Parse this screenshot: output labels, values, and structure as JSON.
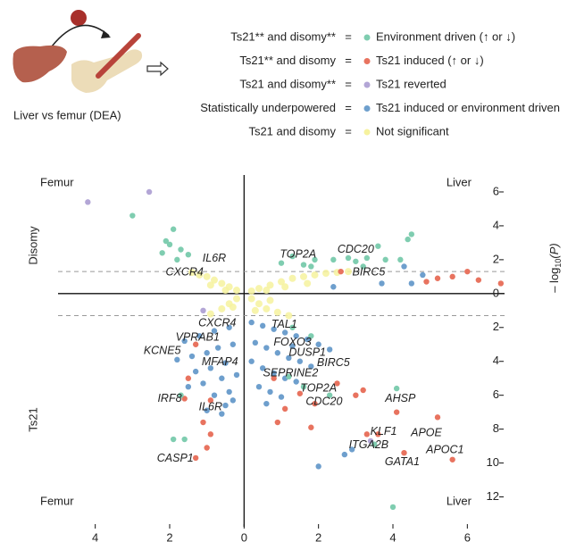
{
  "header": {
    "caption": "Liver vs femur (DEA)"
  },
  "legend_separator": "=",
  "chart_data": {
    "type": "scatter",
    "corner_labels": {
      "top_left": "Femur",
      "top_right": "Liver",
      "bottom_left": "Femur",
      "bottom_right": "Liver"
    },
    "panel_labels": {
      "upper": "Disomy",
      "lower": "Ts21"
    },
    "y_label": {
      "prefix": "– log",
      "subscript": "10",
      "suffix": "(P)"
    },
    "xlim": [
      -5,
      7
    ],
    "xticks": [
      {
        "value": -4,
        "label": "4"
      },
      {
        "value": -2,
        "label": "2"
      },
      0,
      2,
      4,
      6
    ],
    "ylim": [
      -13.5,
      7
    ],
    "yticks": [
      6,
      4,
      2,
      0,
      {
        "value": -2,
        "label": "2"
      },
      {
        "value": -4,
        "label": "4"
      },
      {
        "value": -6,
        "label": "6"
      },
      {
        "value": -8,
        "label": "8"
      },
      {
        "value": -10,
        "label": "10"
      },
      {
        "value": -12,
        "label": "12"
      }
    ],
    "thresholds": [
      1.3,
      -1.3
    ],
    "series": [
      {
        "name": "Not significant",
        "condition": "Ts21 and disomy",
        "color": "#f6f29e",
        "x": [
          -0.2,
          -0.4,
          -0.6,
          -0.8,
          -1.0,
          -1.2,
          -1.4,
          -0.5,
          -0.9,
          0.2,
          0.4,
          0.7,
          1.0,
          1.3,
          1.6,
          1.9,
          2.2,
          2.5,
          2.8,
          0.6,
          1.1,
          1.7,
          -0.2,
          -0.4,
          -0.6,
          -0.9,
          0.2,
          0.4,
          0.6,
          0.9,
          1.2,
          0.3,
          0.7,
          -0.3
        ],
        "values": [
          0.2,
          0.4,
          0.6,
          0.8,
          1.0,
          1.1,
          1.25,
          0.2,
          0.5,
          0.15,
          0.3,
          0.5,
          0.7,
          0.9,
          1.0,
          1.1,
          1.2,
          1.25,
          1.3,
          0.2,
          0.4,
          0.6,
          -0.3,
          -0.6,
          -0.9,
          -1.2,
          -0.3,
          -0.6,
          -0.9,
          -1.1,
          -1.3,
          -1.0,
          -0.4,
          -0.8
        ]
      },
      {
        "name": "Ts21 induced or environment driven",
        "condition": "Statistically underpowered",
        "color": "#6e9fcd",
        "x": [
          3.7,
          4.5,
          4.8,
          4.3,
          2.4,
          -0.4,
          -0.8,
          -1.2,
          -1.6,
          -0.3,
          -0.7,
          -1.0,
          -1.4,
          -1.8,
          -0.5,
          -0.9,
          -1.3,
          -0.2,
          -0.6,
          -1.1,
          -1.5,
          -0.4,
          -0.8,
          -1.0,
          -0.3,
          -0.6,
          0.2,
          0.5,
          0.8,
          1.1,
          1.4,
          1.7,
          2.0,
          2.3,
          0.3,
          0.6,
          0.9,
          1.2,
          1.5,
          1.8,
          0.2,
          0.5,
          0.8,
          1.1,
          1.4,
          0.4,
          0.7,
          1.0,
          2.0,
          2.7,
          2.9,
          -0.5,
          0.6,
          1.3
        ],
        "values": [
          0.6,
          0.6,
          1.1,
          1.6,
          0.4,
          -2.0,
          -2.2,
          -2.5,
          -2.8,
          -3.0,
          -3.2,
          -3.5,
          -3.7,
          -3.9,
          -4.1,
          -4.4,
          -4.6,
          -4.8,
          -5.0,
          -5.3,
          -5.5,
          -5.8,
          -6.0,
          -6.9,
          -6.3,
          -7.1,
          -1.7,
          -1.9,
          -2.1,
          -2.3,
          -2.5,
          -2.7,
          -3.0,
          -3.3,
          -2.9,
          -3.2,
          -3.5,
          -3.8,
          -4.0,
          -4.3,
          -4.0,
          -4.4,
          -4.7,
          -5.0,
          -5.2,
          -5.5,
          -5.8,
          -6.1,
          -10.2,
          -9.5,
          -9.2,
          -6.6,
          -6.5,
          -3.1
        ]
      },
      {
        "name": "Ts21 reverted",
        "condition": "Ts21 and disomy**",
        "color": "#b3a6d6",
        "x": [
          -4.2,
          -2.55,
          -1.1,
          3.4
        ],
        "values": [
          5.4,
          6.0,
          -1.0,
          -8.7
        ]
      },
      {
        "name": "Ts21 induced (↑ or ↓)",
        "condition": "Ts21** and disomy",
        "color": "#e8735f",
        "x": [
          4.9,
          5.2,
          6.0,
          6.3,
          6.9,
          5.6,
          2.6,
          -1.3,
          -1.5,
          -1.6,
          -0.9,
          -1.1,
          -0.9,
          -1.0,
          -1.3,
          1.5,
          1.1,
          0.8,
          1.9,
          2.5,
          3.2,
          3.3,
          3.6,
          4.1,
          4.3,
          5.2,
          5.6,
          3.0,
          0.9,
          1.8
        ],
        "values": [
          0.7,
          0.9,
          1.3,
          0.8,
          0.6,
          1.0,
          1.3,
          -3.0,
          -5.0,
          -6.2,
          -6.3,
          -7.6,
          -8.3,
          -9.1,
          -9.7,
          -5.9,
          -6.8,
          -5.0,
          -6.5,
          -5.3,
          -5.7,
          -8.3,
          -8.3,
          -7.0,
          -9.4,
          -7.3,
          -9.8,
          -6.0,
          -7.6,
          -7.9
        ]
      },
      {
        "name": "Environment driven (↑ or ↓)",
        "condition": "Ts21** and disomy**",
        "color": "#7fcdb0",
        "x": [
          -1.9,
          -2.1,
          -2.0,
          -1.7,
          -1.5,
          -2.2,
          -1.8,
          -3.0,
          1.0,
          1.3,
          1.6,
          1.9,
          1.8,
          2.4,
          2.8,
          3.0,
          3.3,
          3.6,
          3.2,
          4.2,
          4.5,
          4.4,
          3.8,
          -1.7,
          -1.9,
          -1.6,
          3.5,
          2.3,
          1.6,
          1.2,
          4.0,
          1.8,
          1.3,
          4.1
        ],
        "values": [
          3.8,
          3.1,
          2.9,
          2.6,
          2.3,
          2.4,
          2.0,
          4.6,
          1.8,
          2.2,
          1.7,
          2.0,
          1.6,
          2.0,
          2.1,
          1.9,
          2.1,
          2.8,
          1.6,
          2.0,
          3.5,
          3.2,
          2.0,
          -6.0,
          -8.6,
          -8.6,
          -8.9,
          -6.0,
          -5.5,
          -4.9,
          -12.6,
          -2.5,
          -2.0,
          -5.6
        ]
      }
    ],
    "annotations": [
      {
        "text": "IL6R",
        "x": -0.8,
        "y": 2.05
      },
      {
        "text": "CXCR4",
        "x": -1.6,
        "y": 1.25
      },
      {
        "text": "TOP2A",
        "x": 1.45,
        "y": 2.3
      },
      {
        "text": "CDC20",
        "x": 3.0,
        "y": 2.6
      },
      {
        "text": "BIRC5",
        "x": 3.35,
        "y": 1.25
      },
      {
        "text": "CXCR4",
        "x": -0.72,
        "y": -1.75
      },
      {
        "text": "TAL1",
        "x": 1.08,
        "y": -1.85
      },
      {
        "text": "VPRAB1",
        "x": -1.25,
        "y": -2.6
      },
      {
        "text": "FOXO3",
        "x": 1.3,
        "y": -2.9
      },
      {
        "text": "KCNE5",
        "x": -2.2,
        "y": -3.4
      },
      {
        "text": "DUSP1",
        "x": 1.7,
        "y": -3.5
      },
      {
        "text": "MFAP4",
        "x": -0.65,
        "y": -4.05
      },
      {
        "text": "BIRC5",
        "x": 2.4,
        "y": -4.1
      },
      {
        "text": "SEPRINE2",
        "x": 1.25,
        "y": -4.7
      },
      {
        "text": "TOP2A",
        "x": 2.0,
        "y": -5.6
      },
      {
        "text": "CDC20",
        "x": 2.15,
        "y": -6.4
      },
      {
        "text": "AHSP",
        "x": 4.2,
        "y": -6.2
      },
      {
        "text": "IRF8",
        "x": -2.0,
        "y": -6.2
      },
      {
        "text": "IL6R",
        "x": -0.9,
        "y": -6.7
      },
      {
        "text": "KLF1",
        "x": 3.75,
        "y": -8.15
      },
      {
        "text": "APOE",
        "x": 4.9,
        "y": -8.25
      },
      {
        "text": "ITGA2B",
        "x": 3.35,
        "y": -8.95
      },
      {
        "text": "APOC1",
        "x": 5.4,
        "y": -9.25
      },
      {
        "text": "GATA1",
        "x": 4.25,
        "y": -9.95
      },
      {
        "text": "CASP1",
        "x": -1.85,
        "y": -9.75
      }
    ]
  }
}
